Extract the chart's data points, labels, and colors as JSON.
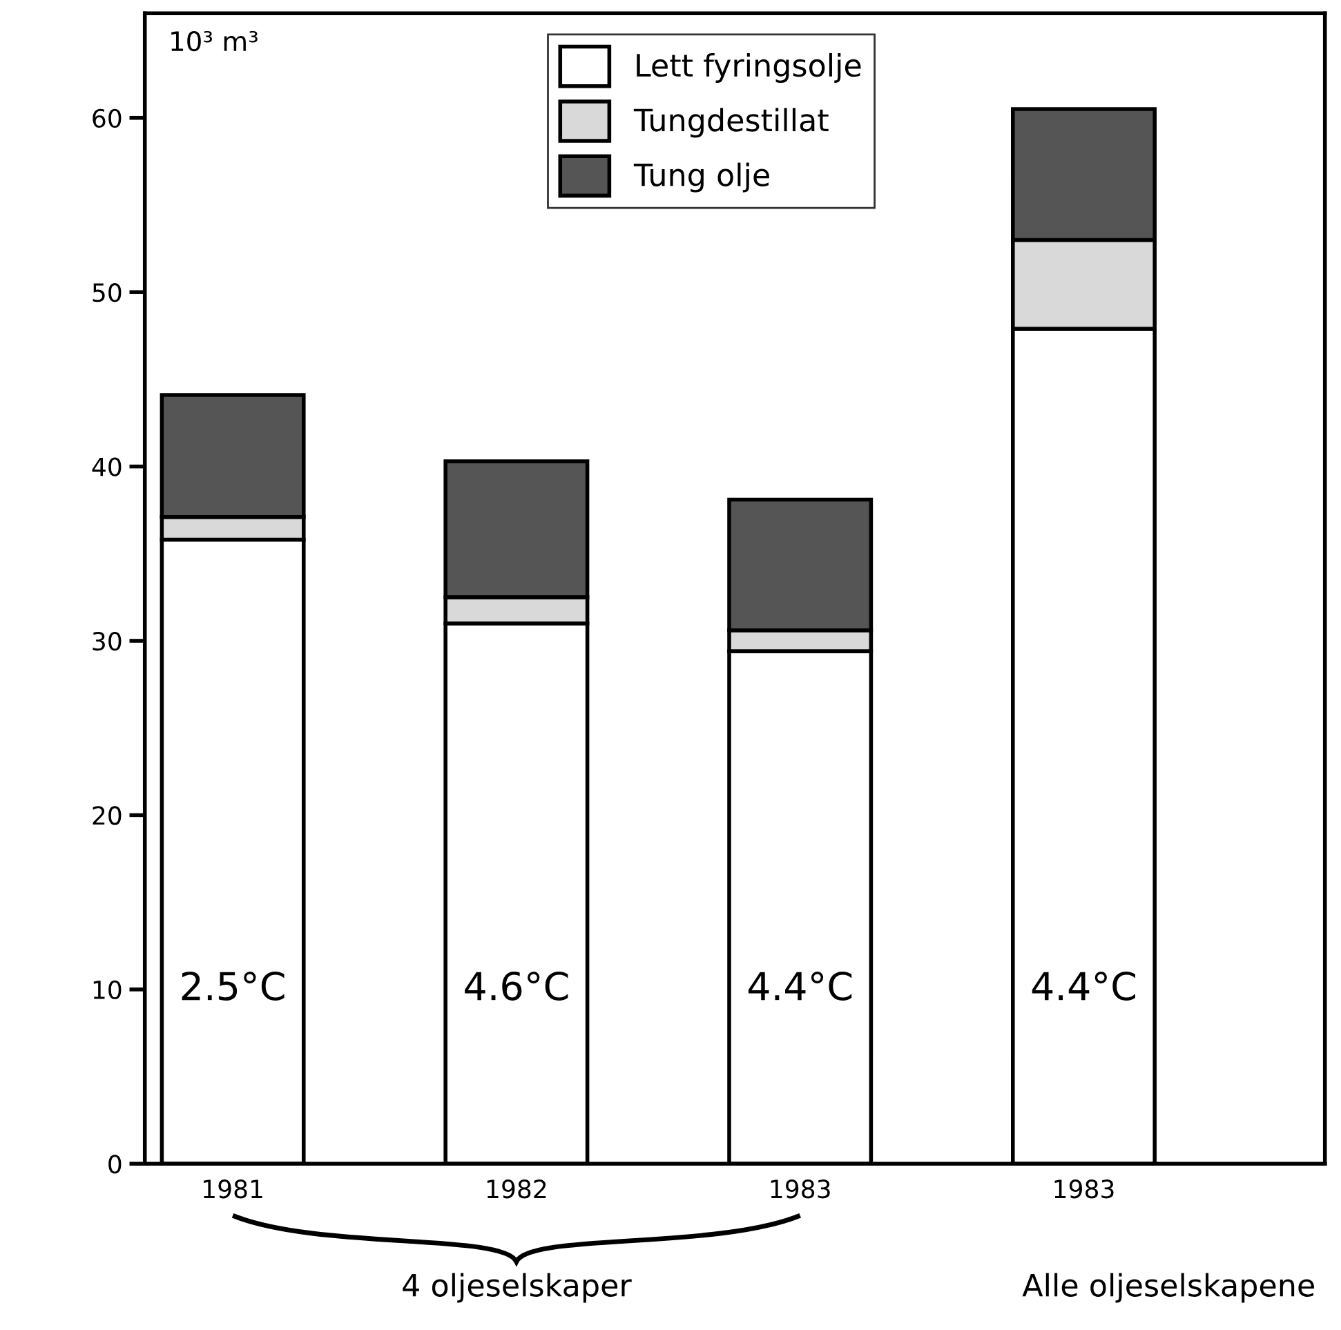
{
  "chart_data": {
    "type": "bar",
    "stacked": true,
    "ylabel": "10³ m³",
    "categories": [
      "1981",
      "1982",
      "1983",
      "1983"
    ],
    "series": [
      {
        "name": "Lett fyringsolje",
        "color": "#ffffff",
        "values": [
          35.8,
          31.0,
          29.4,
          47.9
        ]
      },
      {
        "name": "Tungdestillat",
        "color": "#d9d9d9",
        "values": [
          1.3,
          1.5,
          1.2,
          5.1
        ]
      },
      {
        "name": "Tung olje",
        "color": "#555555",
        "values": [
          7.0,
          7.8,
          7.5,
          7.5
        ]
      }
    ],
    "ylim": [
      0,
      66
    ],
    "yticks": [
      0,
      10,
      20,
      30,
      40,
      50,
      60
    ],
    "grid": false,
    "legend": "top",
    "annotations": [
      "2.5°C",
      "4.6°C",
      "4.4°C",
      "4.4°C",
      "4 oljeselskaper",
      "Alle oljeselskapene"
    ]
  }
}
